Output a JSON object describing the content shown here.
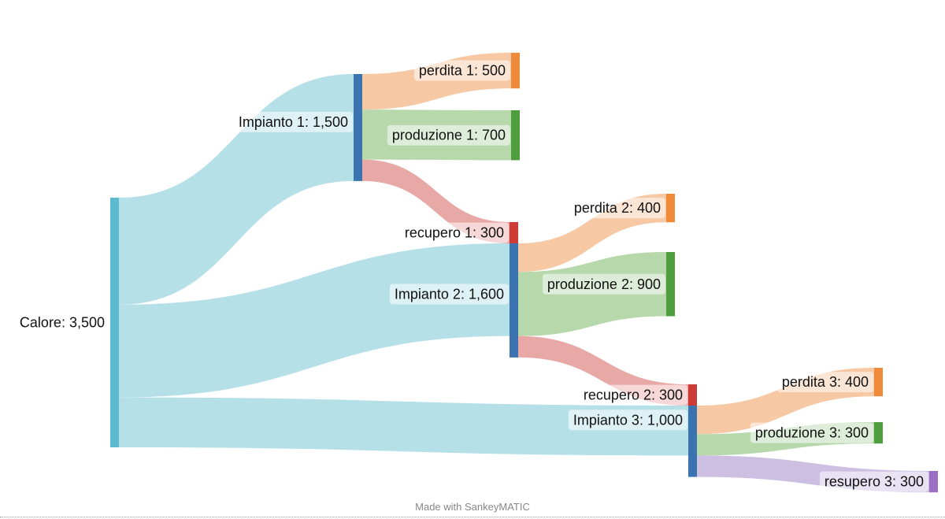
{
  "diagram": {
    "type": "sankey",
    "colors": {
      "heat": "#5bbcd0",
      "plant": "#3a73b0",
      "loss": "#ef8a3a",
      "production": "#4f9e3e",
      "recovery": "#cc3b36",
      "recovery3": "#9a6fc4"
    },
    "nodes": [
      {
        "id": "calore",
        "label": "Calore: 3,500",
        "color": "#5bbcd0"
      },
      {
        "id": "impianto1",
        "label": "Impianto 1: 1,500",
        "color": "#3a73b0"
      },
      {
        "id": "perdita1",
        "label": "perdita 1: 500",
        "color": "#ef8a3a"
      },
      {
        "id": "produzione1",
        "label": "produzione 1: 700",
        "color": "#4f9e3e"
      },
      {
        "id": "recupero1",
        "label": "recupero 1: 300",
        "color": "#cc3b36"
      },
      {
        "id": "impianto2",
        "label": "Impianto 2: 1,600",
        "color": "#3a73b0"
      },
      {
        "id": "perdita2",
        "label": "perdita 2: 400",
        "color": "#ef8a3a"
      },
      {
        "id": "produzione2",
        "label": "produzione 2: 900",
        "color": "#4f9e3e"
      },
      {
        "id": "recupero2",
        "label": "recupero 2: 300",
        "color": "#cc3b36"
      },
      {
        "id": "impianto3",
        "label": "Impianto 3: 1,000",
        "color": "#3a73b0"
      },
      {
        "id": "perdita3",
        "label": "perdita 3: 400",
        "color": "#ef8a3a"
      },
      {
        "id": "produzione3",
        "label": "produzione 3: 300",
        "color": "#4f9e3e"
      },
      {
        "id": "resupero3",
        "label": "resupero 3: 300",
        "color": "#9a6fc4"
      }
    ],
    "flows": [
      {
        "from": "calore",
        "to": "impianto1",
        "value": 1500
      },
      {
        "from": "calore",
        "to": "impianto2",
        "value": 1300
      },
      {
        "from": "calore",
        "to": "impianto3",
        "value": 700
      },
      {
        "from": "impianto1",
        "to": "perdita1",
        "value": 500
      },
      {
        "from": "impianto1",
        "to": "produzione1",
        "value": 700
      },
      {
        "from": "impianto1",
        "to": "recupero1",
        "value": 300
      },
      {
        "from": "recupero1",
        "to": "impianto2",
        "value": 300
      },
      {
        "from": "impianto2",
        "to": "perdita2",
        "value": 400
      },
      {
        "from": "impianto2",
        "to": "produzione2",
        "value": 900
      },
      {
        "from": "impianto2",
        "to": "recupero2",
        "value": 300
      },
      {
        "from": "recupero2",
        "to": "impianto3",
        "value": 300
      },
      {
        "from": "impianto3",
        "to": "perdita3",
        "value": 400
      },
      {
        "from": "impianto3",
        "to": "produzione3",
        "value": 300
      },
      {
        "from": "impianto3",
        "to": "resupero3",
        "value": 300
      }
    ]
  },
  "footer": {
    "text": "Made with SankeyMATIC"
  }
}
